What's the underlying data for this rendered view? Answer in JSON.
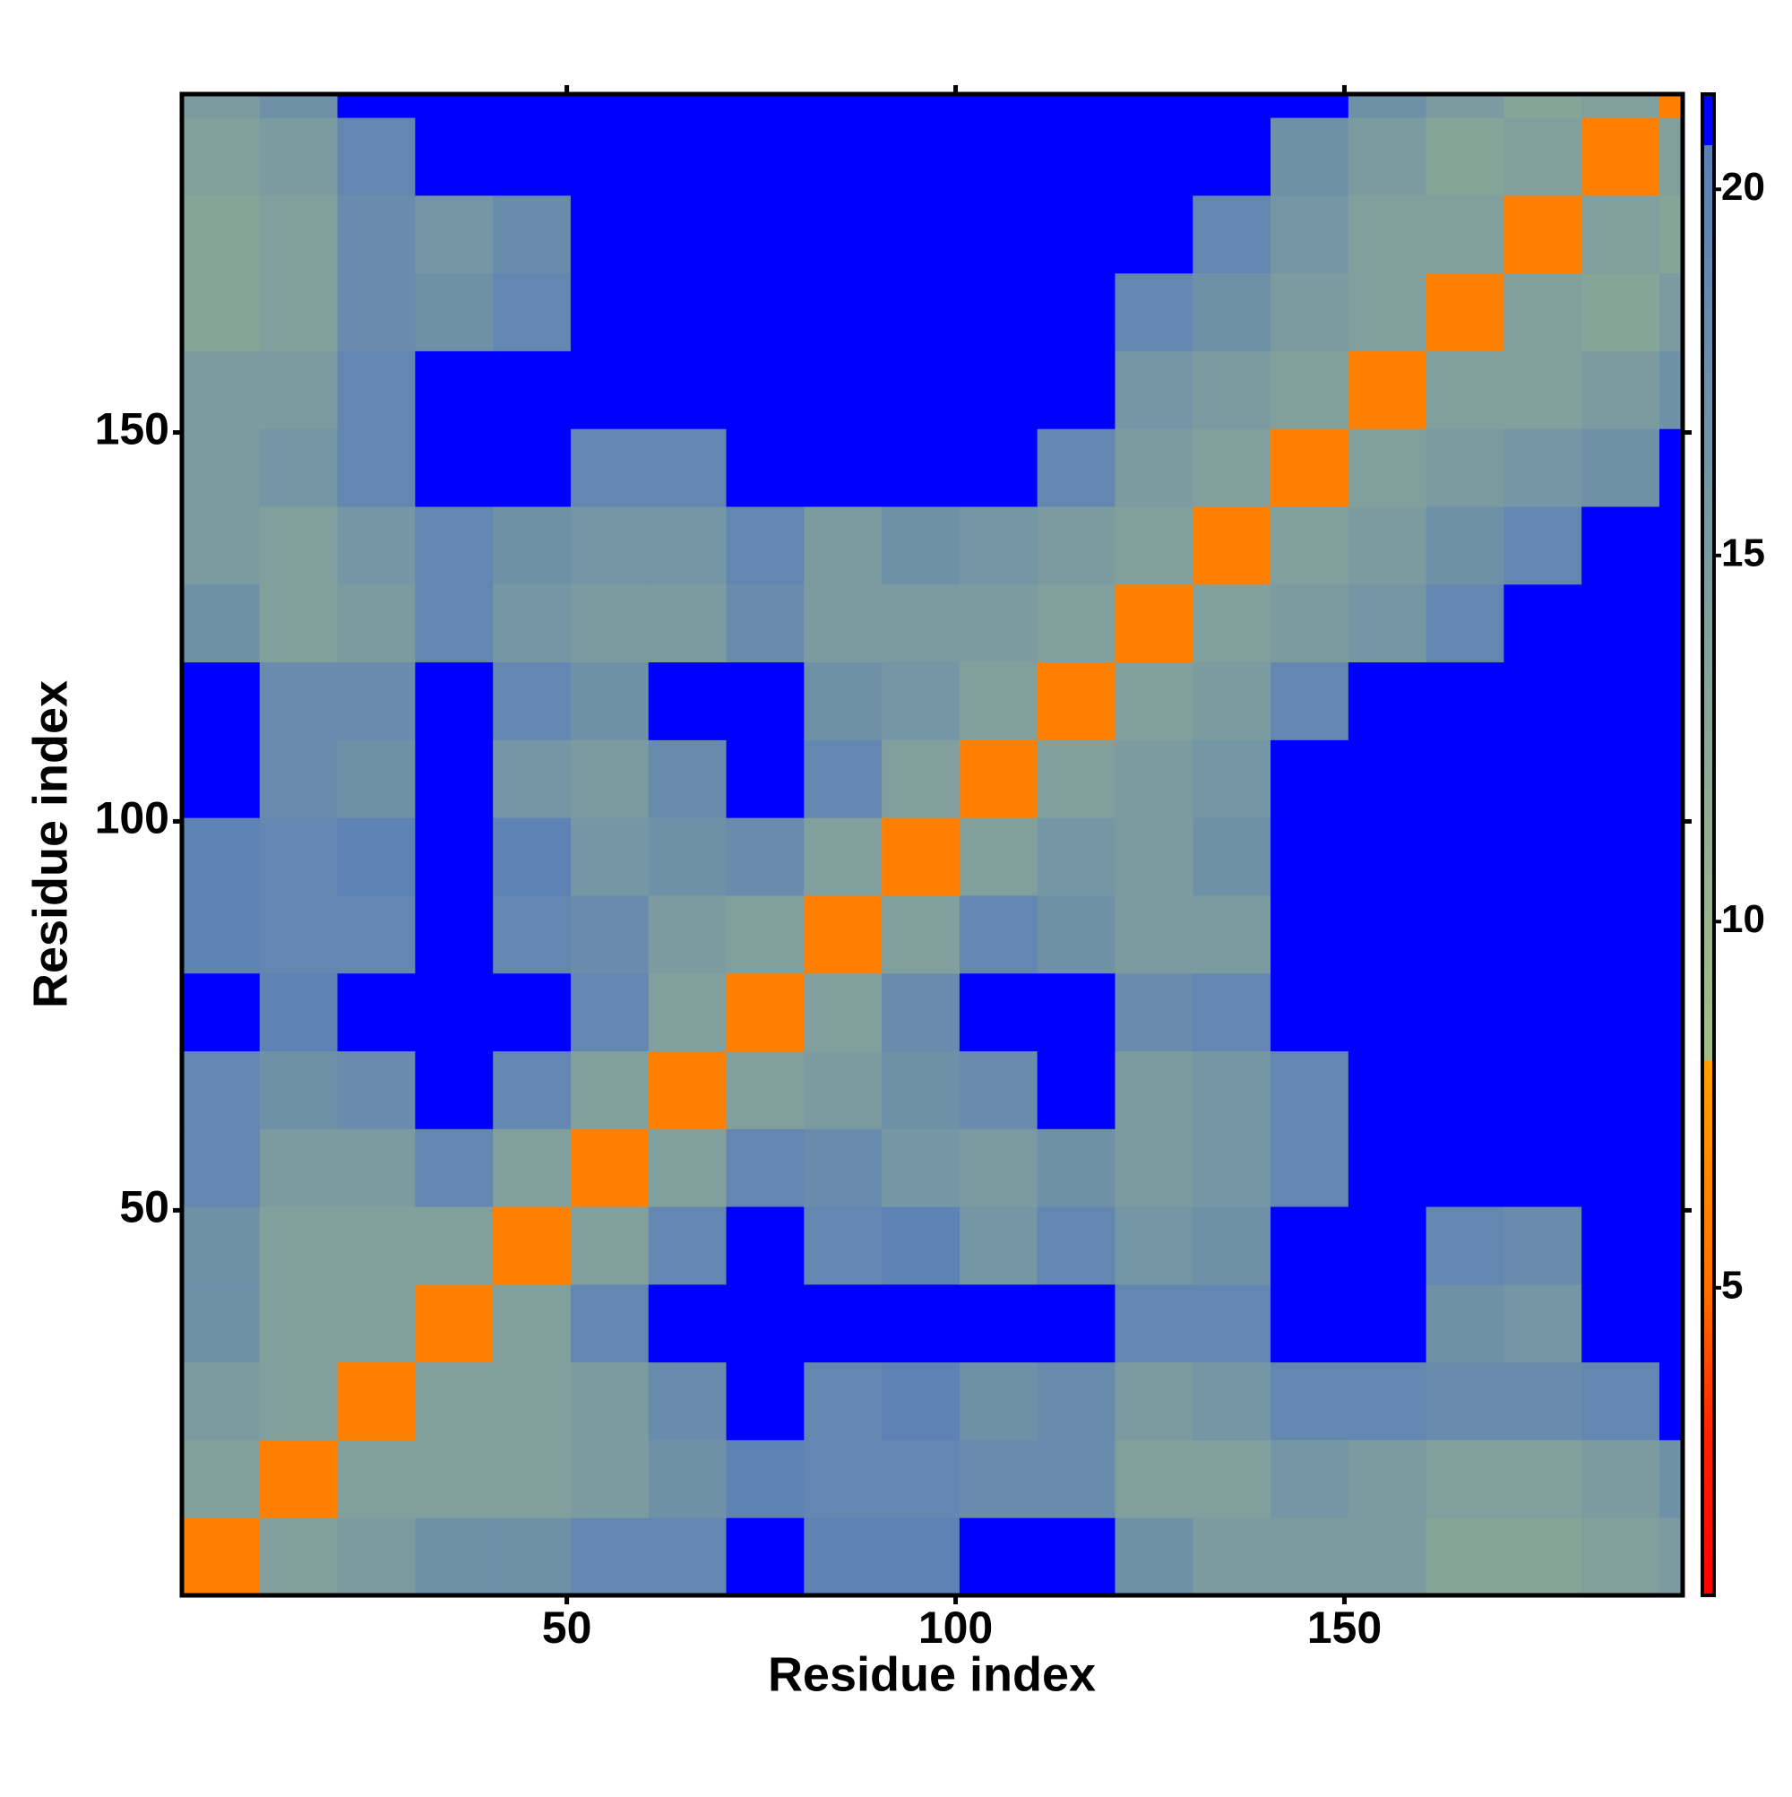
{
  "chart_data": {
    "type": "heatmap",
    "x_label": "Residue index",
    "y_label": "Residue index",
    "xbins": [
      0.5,
      10.5,
      20.5,
      30.5,
      40.5,
      50.5,
      60.5,
      70.5,
      80.5,
      90.5,
      100.5,
      110.5,
      120.5,
      130.5,
      140.5,
      150.5,
      160.5,
      170.5,
      180.5,
      190.5,
      193.5
    ],
    "ybins": [
      0.5,
      10.5,
      20.5,
      30.5,
      40.5,
      50.5,
      60.5,
      70.5,
      80.5,
      90.5,
      100.5,
      110.5,
      120.5,
      130.5,
      140.5,
      150.5,
      160.5,
      170.5,
      180.5,
      190.5,
      193.5
    ],
    "values": [
      [
        6,
        14,
        15,
        17,
        17,
        19,
        19,
        21,
        20,
        20,
        21,
        21,
        17,
        15,
        15,
        15,
        13,
        13,
        14,
        15
      ],
      [
        14,
        6,
        14,
        14,
        14,
        15,
        17,
        20,
        19,
        19,
        18,
        18,
        14,
        14,
        16,
        15,
        14,
        14,
        15,
        17
      ],
      [
        15,
        14,
        6,
        14,
        14,
        15,
        18,
        21,
        19,
        20,
        17,
        18,
        15,
        16,
        19,
        19,
        18,
        18,
        19,
        21
      ],
      [
        17,
        14,
        14,
        6,
        14,
        19,
        21,
        21,
        21,
        21,
        21,
        21,
        19,
        19,
        21,
        21,
        17,
        16,
        21,
        21
      ],
      [
        17,
        14,
        14,
        14,
        6,
        14,
        19,
        21,
        19,
        20,
        16,
        19,
        16,
        17,
        21,
        21,
        19,
        18,
        21,
        21
      ],
      [
        19,
        15,
        15,
        19,
        14,
        6,
        14,
        19,
        18,
        16,
        15,
        17,
        15,
        16,
        19,
        21,
        21,
        21,
        21,
        21
      ],
      [
        19,
        17,
        18,
        21,
        19,
        14,
        6,
        14,
        15,
        17,
        18,
        21,
        15,
        16,
        19,
        21,
        21,
        21,
        21,
        21
      ],
      [
        21,
        20,
        21,
        21,
        21,
        19,
        14,
        6,
        14,
        18,
        21,
        21,
        18,
        19,
        21,
        21,
        21,
        21,
        21,
        21
      ],
      [
        20,
        19,
        19,
        21,
        19,
        18,
        15,
        14,
        6,
        14,
        19,
        17,
        15,
        15,
        21,
        21,
        21,
        21,
        21,
        21
      ],
      [
        20,
        19,
        20,
        21,
        20,
        16,
        17,
        18,
        14,
        6,
        14,
        16,
        15,
        17,
        21,
        21,
        21,
        21,
        21,
        21
      ],
      [
        21,
        18,
        17,
        21,
        16,
        15,
        18,
        21,
        19,
        14,
        6,
        14,
        15,
        16,
        21,
        21,
        21,
        21,
        21,
        21
      ],
      [
        21,
        18,
        18,
        21,
        19,
        17,
        21,
        21,
        17,
        16,
        14,
        6,
        14,
        15,
        19,
        21,
        21,
        21,
        21,
        21
      ],
      [
        17,
        14,
        15,
        19,
        16,
        15,
        15,
        18,
        15,
        15,
        15,
        14,
        6,
        14,
        15,
        16,
        19,
        21,
        21,
        21
      ],
      [
        15,
        14,
        16,
        19,
        17,
        16,
        16,
        19,
        15,
        17,
        16,
        15,
        14,
        6,
        14,
        15,
        17,
        19,
        21,
        21
      ],
      [
        15,
        16,
        19,
        21,
        21,
        19,
        19,
        21,
        21,
        21,
        21,
        19,
        15,
        14,
        6,
        14,
        15,
        16,
        17,
        21
      ],
      [
        15,
        15,
        19,
        21,
        21,
        21,
        21,
        21,
        21,
        21,
        21,
        21,
        16,
        15,
        14,
        6,
        14,
        14,
        15,
        17
      ],
      [
        13,
        14,
        18,
        17,
        19,
        21,
        21,
        21,
        21,
        21,
        21,
        21,
        19,
        17,
        15,
        14,
        6,
        14,
        13,
        15
      ],
      [
        13,
        14,
        18,
        16,
        18,
        21,
        21,
        21,
        21,
        21,
        21,
        21,
        21,
        19,
        16,
        14,
        14,
        6,
        14,
        13
      ],
      [
        14,
        15,
        19,
        21,
        21,
        21,
        21,
        21,
        21,
        21,
        21,
        21,
        21,
        21,
        17,
        15,
        13,
        14,
        6,
        14
      ],
      [
        15,
        17,
        21,
        21,
        21,
        21,
        21,
        21,
        21,
        21,
        21,
        21,
        21,
        21,
        21,
        17,
        15,
        13,
        14,
        6
      ]
    ],
    "xlim": [
      0.5,
      193.5
    ],
    "ylim": [
      0.5,
      193.5
    ],
    "xticks": [
      50,
      100,
      150
    ],
    "yticks": [
      50,
      100,
      150
    ],
    "zlim": [
      0.8,
      21.3
    ],
    "zticks": [
      5,
      10,
      15,
      20
    ],
    "colorscale": [
      [
        0.8,
        "#ff0000"
      ],
      [
        3,
        "#ff2200"
      ],
      [
        5,
        "#ff7000"
      ],
      [
        8.1,
        "#ffa000"
      ],
      [
        8.1,
        "#a3bd86"
      ],
      [
        20.6,
        "#5a7fb6"
      ],
      [
        20.6,
        "#0000ff"
      ],
      [
        21.3,
        "#0000ff"
      ]
    ]
  }
}
